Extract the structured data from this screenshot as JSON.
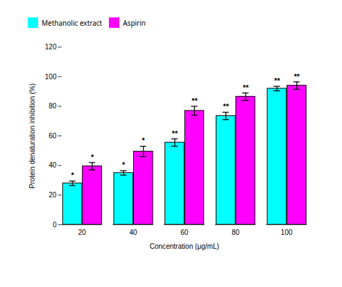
{
  "chart_data": {
    "type": "bar",
    "categories": [
      "20",
      "40",
      "60",
      "80",
      "100"
    ],
    "series": [
      {
        "name": "Methanolic extract",
        "color": "#00FFFF",
        "values": [
          28.0,
          35.0,
          55.5,
          73.5,
          92.0
        ],
        "errors": [
          1.5,
          1.5,
          2.5,
          2.5,
          1.5
        ],
        "significance": [
          "*",
          "*",
          "**",
          "**",
          "**"
        ]
      },
      {
        "name": "Aspirin",
        "color": "#FF00FF",
        "values": [
          39.5,
          49.5,
          77.0,
          86.5,
          94.0
        ],
        "errors": [
          2.5,
          3.5,
          3.0,
          2.5,
          2.5
        ],
        "significance": [
          "*",
          "*",
          "**",
          "**",
          "**"
        ]
      }
    ],
    "xlabel": "Concentration (μg/mL)",
    "ylabel": "Protein denaturation inhibition (%)",
    "ylim": [
      0,
      120
    ],
    "yticks": [
      0,
      20,
      40,
      60,
      80,
      100,
      120
    ],
    "legend": "upper center",
    "grid": false
  }
}
